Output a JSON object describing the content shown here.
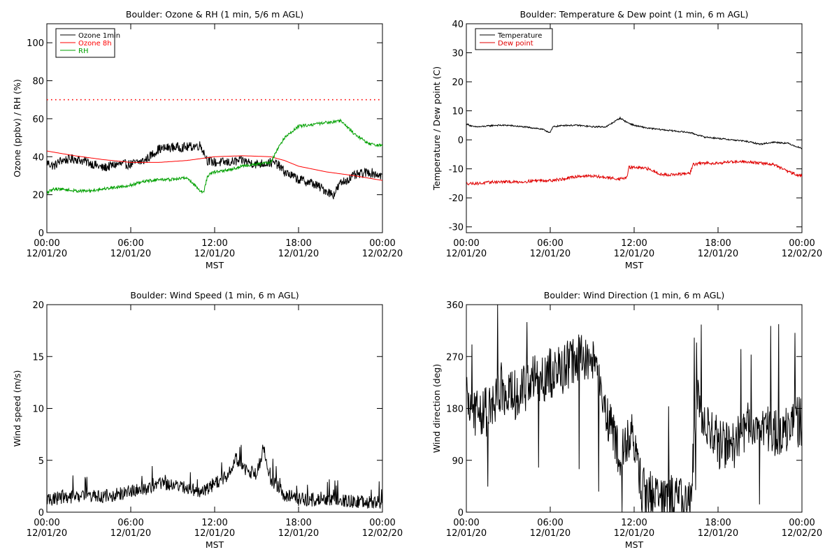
{
  "chart_data": [
    {
      "type": "line",
      "title": "Boulder: Ozone & RH (1 min, 5/6 m AGL)",
      "ylabel": "Ozone (ppbv) / RH (%)",
      "xlabel": "MST",
      "xlim": [
        0,
        24
      ],
      "ylim": [
        0,
        110
      ],
      "yticks": [
        0,
        20,
        40,
        60,
        80,
        100
      ],
      "xticks": [
        {
          "x": 0,
          "line1": "00:00",
          "line2": "12/01/20"
        },
        {
          "x": 6,
          "line1": "06:00",
          "line2": "12/01/20"
        },
        {
          "x": 12,
          "line1": "12:00",
          "line2": "12/01/20"
        },
        {
          "x": 18,
          "line1": "18:00",
          "line2": "12/01/20"
        },
        {
          "x": 24,
          "line1": "00:00",
          "line2": "12/02/20"
        }
      ],
      "legend": {
        "placement": "top-left"
      },
      "reference_lines": [
        {
          "y": 70,
          "color": "#ff0000",
          "style": "dotted"
        }
      ],
      "series": [
        {
          "name": "Ozone 1min",
          "color": "#000000",
          "noise": 2.5,
          "x": [
            0,
            0.5,
            1,
            2,
            3,
            4,
            5,
            6,
            7,
            8,
            9,
            10,
            11,
            11.5,
            12,
            13,
            14,
            15,
            16,
            16.5,
            17,
            18,
            19,
            20,
            20.5,
            21,
            22,
            23,
            24
          ],
          "y": [
            37,
            35,
            38,
            39,
            37,
            34,
            36,
            36,
            38,
            44,
            45,
            45,
            46,
            38,
            37,
            37,
            38,
            36,
            37,
            36,
            32,
            28,
            26,
            22,
            20,
            26,
            30,
            32,
            30
          ]
        },
        {
          "name": "Ozone 8h",
          "color": "#ff0000",
          "noise": 0,
          "x": [
            0,
            2,
            4,
            6,
            8,
            10,
            12,
            14,
            16,
            17,
            18,
            20,
            22,
            24
          ],
          "y": [
            43,
            40.5,
            38.5,
            37,
            37,
            38,
            40,
            40.5,
            40,
            38,
            35,
            32,
            30,
            27.5
          ]
        },
        {
          "name": "RH",
          "color": "#00a000",
          "noise": 0.8,
          "x": [
            0,
            0.5,
            1,
            2,
            3,
            4,
            5,
            6,
            7,
            8,
            9,
            10,
            11,
            11.2,
            11.5,
            12,
            13,
            14,
            15,
            16,
            16.5,
            17,
            18,
            19,
            20,
            21,
            22,
            23,
            23.5,
            24
          ],
          "y": [
            21,
            23,
            23,
            22,
            22,
            23,
            24,
            25,
            27,
            28,
            28,
            29,
            22,
            21,
            30,
            32,
            33,
            35,
            36,
            37,
            44,
            50,
            56,
            57,
            58,
            59,
            52,
            47,
            46,
            46
          ]
        }
      ]
    },
    {
      "type": "line",
      "title": "Boulder: Temperature & Dew point (1 min, 6 m AGL)",
      "ylabel": "Temperature / Dew point (C)",
      "xlabel": "MST",
      "xlim": [
        0,
        24
      ],
      "ylim": [
        -32,
        40
      ],
      "yticks": [
        -30,
        -20,
        -10,
        0,
        10,
        20,
        30,
        40
      ],
      "xticks": [
        {
          "x": 0,
          "line1": "00:00",
          "line2": "12/01/20"
        },
        {
          "x": 6,
          "line1": "06:00",
          "line2": "12/01/20"
        },
        {
          "x": 12,
          "line1": "12:00",
          "line2": "12/01/20"
        },
        {
          "x": 18,
          "line1": "18:00",
          "line2": "12/01/20"
        },
        {
          "x": 24,
          "line1": "00:00",
          "line2": "12/02/20"
        }
      ],
      "legend": {
        "placement": "top-left"
      },
      "reference_lines": [],
      "series": [
        {
          "name": "Temperature",
          "color": "#000000",
          "noise": 0.25,
          "x": [
            0,
            0.5,
            1,
            2,
            3,
            4,
            5,
            5.5,
            6,
            6.2,
            7,
            8,
            9,
            10,
            10.5,
            11,
            11.5,
            12,
            13,
            14,
            15,
            16,
            17,
            18,
            19,
            20,
            21,
            22,
            23,
            24
          ],
          "y": [
            5.5,
            4.5,
            4.5,
            5,
            5,
            4.5,
            4,
            3.5,
            2.5,
            4.5,
            5,
            5,
            4.5,
            4.5,
            6,
            7.5,
            6,
            5,
            4,
            3.5,
            3,
            2.5,
            1,
            0.5,
            0,
            -0.5,
            -1.5,
            -0.8,
            -1.2,
            -3
          ]
        },
        {
          "name": "Dew point",
          "color": "#e00000",
          "noise": 0.5,
          "x": [
            0,
            1,
            2,
            3,
            4,
            5,
            6,
            7,
            8,
            9,
            10,
            11,
            11.5,
            11.6,
            12,
            13,
            14,
            15,
            16,
            16.2,
            17,
            18,
            19,
            20,
            21,
            22,
            23,
            24
          ],
          "y": [
            -15,
            -15,
            -14.5,
            -14.5,
            -14.5,
            -14,
            -14,
            -13.5,
            -12.5,
            -12.5,
            -13,
            -13.5,
            -13,
            -9.5,
            -9.5,
            -10,
            -12,
            -12,
            -11.5,
            -8.5,
            -8,
            -8,
            -7.5,
            -7.5,
            -8,
            -8.5,
            -11,
            -12.5
          ]
        }
      ]
    },
    {
      "type": "line",
      "title": "Boulder: Wind Speed (1 min, 6 m AGL)",
      "ylabel": "Wind speed (m/s)",
      "xlabel": "MST",
      "xlim": [
        0,
        24
      ],
      "ylim": [
        0,
        20
      ],
      "yticks": [
        0,
        5,
        10,
        15,
        20
      ],
      "xticks": [
        {
          "x": 0,
          "line1": "00:00",
          "line2": "12/01/20"
        },
        {
          "x": 6,
          "line1": "06:00",
          "line2": "12/01/20"
        },
        {
          "x": 12,
          "line1": "12:00",
          "line2": "12/01/20"
        },
        {
          "x": 18,
          "line1": "18:00",
          "line2": "12/01/20"
        },
        {
          "x": 24,
          "line1": "00:00",
          "line2": "12/02/20"
        }
      ],
      "legend": null,
      "reference_lines": [],
      "series": [
        {
          "name": "",
          "color": "#000000",
          "noise": 1.3,
          "x": [
            0,
            1,
            2,
            3,
            4,
            5,
            6,
            7,
            8,
            9,
            10,
            11,
            12,
            13,
            13.5,
            14,
            15,
            15.5,
            16,
            17,
            18,
            19,
            20,
            21,
            22,
            23,
            24
          ],
          "y": [
            1,
            1.2,
            1.3,
            1.5,
            1.3,
            1.5,
            1.8,
            2,
            2.5,
            2.5,
            2.2,
            1.8,
            2.5,
            3.5,
            5,
            4,
            3.5,
            6,
            3,
            1.5,
            1,
            1,
            0.8,
            1,
            0.8,
            0.8,
            0.7
          ]
        }
      ]
    },
    {
      "type": "line",
      "title": "Boulder: Wind Direction (1 min, 6 m AGL)",
      "ylabel": "Wind direction (deg)",
      "xlabel": "MST",
      "xlim": [
        0,
        24
      ],
      "ylim": [
        0,
        360
      ],
      "yticks": [
        0,
        90,
        180,
        270,
        360
      ],
      "xticks": [
        {
          "x": 0,
          "line1": "00:00",
          "line2": "12/01/20"
        },
        {
          "x": 6,
          "line1": "06:00",
          "line2": "12/01/20"
        },
        {
          "x": 12,
          "line1": "12:00",
          "line2": "12/01/20"
        },
        {
          "x": 18,
          "line1": "18:00",
          "line2": "12/01/20"
        },
        {
          "x": 24,
          "line1": "00:00",
          "line2": "12/02/20"
        }
      ],
      "legend": null,
      "reference_lines": [],
      "series": [
        {
          "name": "",
          "color": "#000000",
          "noise": 45,
          "x": [
            0,
            1,
            2,
            2.5,
            3,
            4,
            5,
            6,
            7,
            8,
            9,
            9.5,
            10,
            10.5,
            11,
            11.5,
            12,
            12.5,
            13,
            14,
            15,
            16,
            16.5,
            17,
            18,
            19,
            20,
            21,
            22,
            23,
            24
          ],
          "y": [
            190,
            170,
            180,
            220,
            200,
            210,
            230,
            240,
            250,
            270,
            260,
            220,
            180,
            130,
            90,
            120,
            130,
            40,
            30,
            25,
            20,
            15,
            200,
            150,
            120,
            110,
            150,
            160,
            130,
            150,
            160
          ]
        }
      ]
    }
  ]
}
